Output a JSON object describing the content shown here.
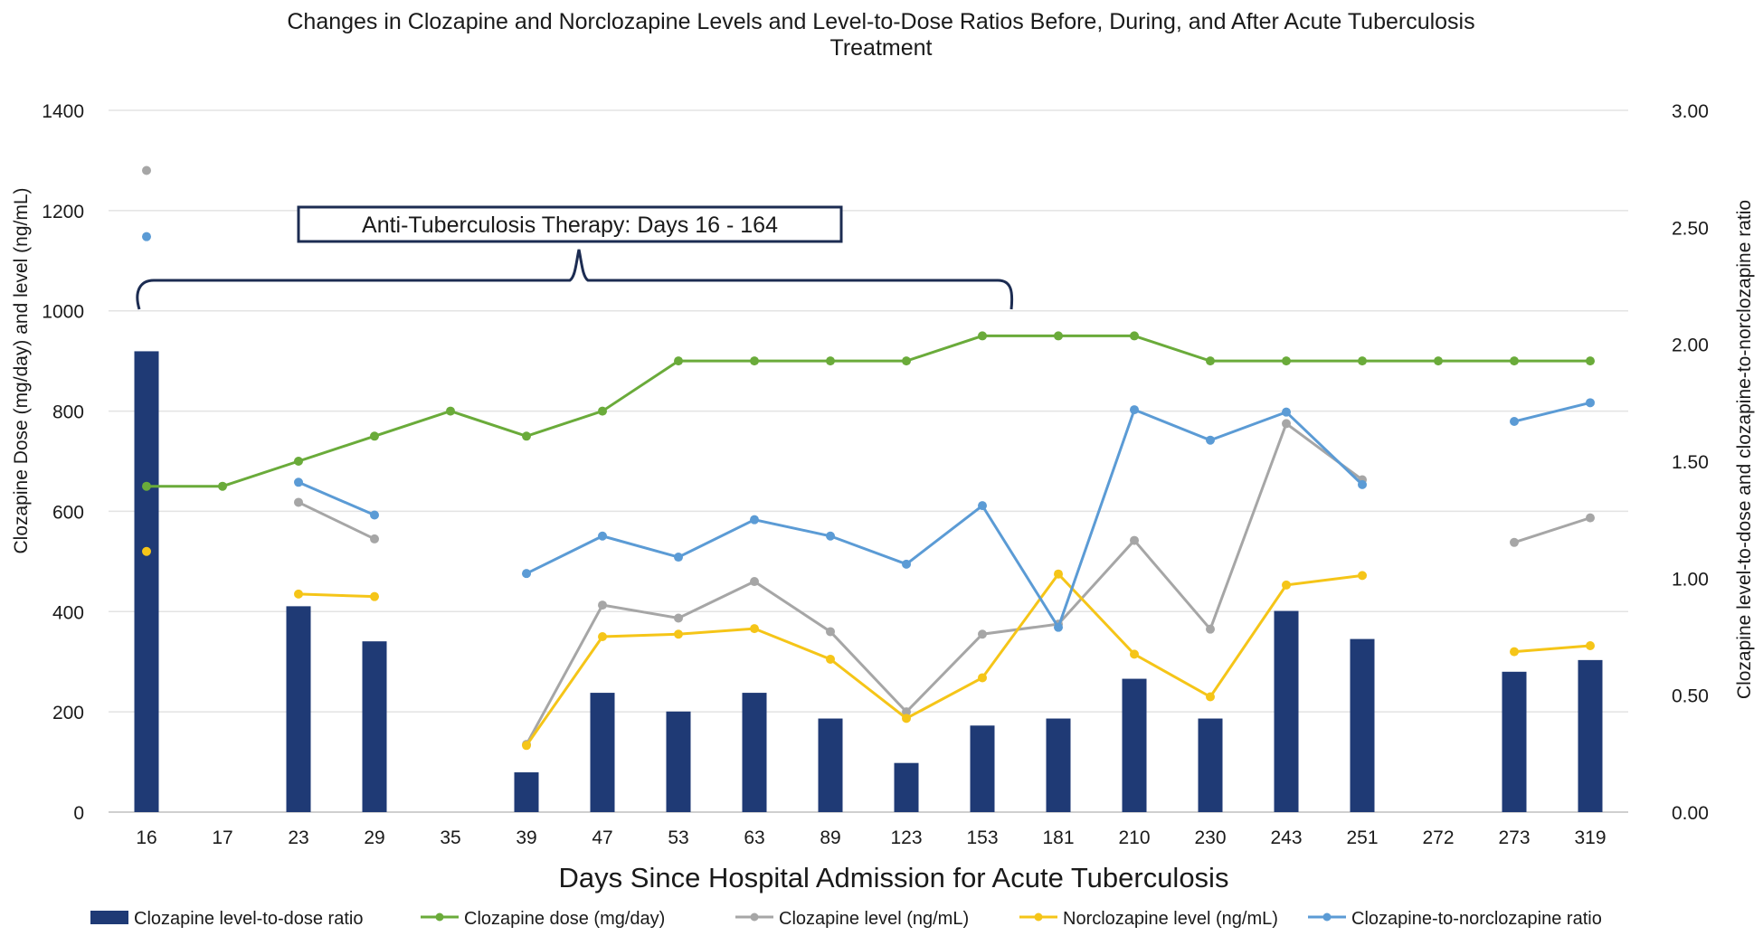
{
  "chart_data": {
    "type": "bar-line combo",
    "title_lines": [
      "Changes in Clozapine and Norclozapine Levels and Level-to-Dose Ratios Before, During, and After Acute Tuberculosis",
      "Treatment"
    ],
    "xlabel": "Days Since Hospital Admission for Acute Tuberculosis",
    "ylabel_left": "Clozapine Dose (mg/day) and level (ng/mL)",
    "ylabel_right": "Clozapine level-to-dose and clozapine-to-norclozapine ratio",
    "categories": [
      "16",
      "17",
      "23",
      "29",
      "35",
      "39",
      "47",
      "53",
      "63",
      "89",
      "123",
      "153",
      "181",
      "210",
      "230",
      "243",
      "251",
      "272",
      "273",
      "319"
    ],
    "ylim_left": [
      0,
      1400
    ],
    "yticks_left": [
      0,
      200,
      400,
      600,
      800,
      1000,
      1200,
      1400
    ],
    "ylim_right": [
      0,
      3
    ],
    "yticks_right": [
      "0.00",
      "0.50",
      "1.00",
      "1.50",
      "2.00",
      "2.50",
      "3.00"
    ],
    "annotation": {
      "text": "Anti-Tuberculosis Therapy: Days 16 - 164",
      "span_from_day": "16",
      "span_to_day": "164"
    },
    "series": [
      {
        "name": "Clozapine level-to-dose ratio",
        "kind": "bar",
        "axis": "right",
        "color": "#1f3a75",
        "values": [
          1.97,
          null,
          0.88,
          0.73,
          null,
          0.17,
          0.51,
          0.43,
          0.51,
          0.4,
          0.21,
          0.37,
          0.4,
          0.57,
          0.4,
          0.86,
          0.74,
          null,
          0.6,
          0.65
        ]
      },
      {
        "name": "Clozapine dose (mg/day)",
        "kind": "line",
        "axis": "left",
        "color": "#6aab3a",
        "values": [
          650,
          650,
          700,
          750,
          800,
          750,
          800,
          900,
          900,
          900,
          900,
          950,
          950,
          950,
          900,
          900,
          900,
          900,
          900,
          900
        ]
      },
      {
        "name": "Clozapine level (ng/mL)",
        "kind": "line",
        "axis": "left",
        "color": "#a6a6a6",
        "values": [
          1280,
          null,
          618,
          545,
          null,
          135,
          413,
          387,
          460,
          360,
          200,
          355,
          375,
          542,
          365,
          775,
          663,
          null,
          538,
          587
        ]
      },
      {
        "name": "Norclozapine level (ng/mL)",
        "kind": "line",
        "axis": "left",
        "color": "#f5c518",
        "values": [
          520,
          null,
          435,
          430,
          null,
          133,
          350,
          355,
          366,
          305,
          187,
          268,
          475,
          315,
          230,
          453,
          472,
          null,
          320,
          332
        ]
      },
      {
        "name": "Clozapine-to-norclozapine ratio",
        "kind": "line",
        "axis": "right",
        "color": "#5b9bd5",
        "values": [
          2.46,
          null,
          1.41,
          1.27,
          null,
          1.02,
          1.18,
          1.09,
          1.25,
          1.18,
          1.06,
          1.31,
          0.79,
          1.72,
          1.59,
          1.71,
          1.4,
          null,
          1.67,
          1.75
        ]
      }
    ]
  }
}
